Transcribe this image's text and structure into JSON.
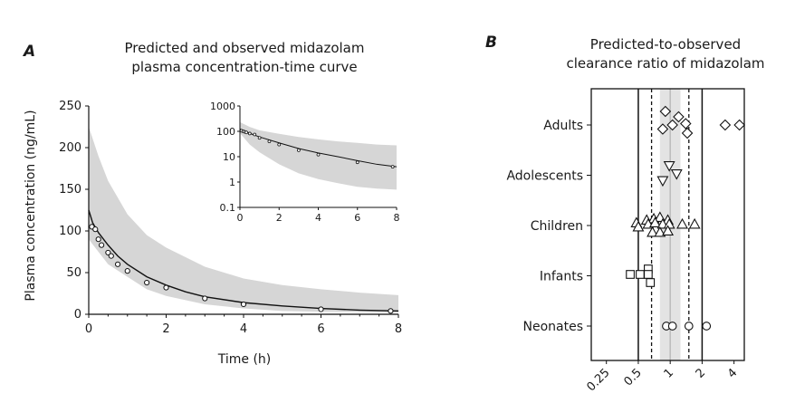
{
  "panel_a": {
    "letter": "A",
    "title_line1": "Predicted and observed midazolam",
    "title_line2": "plasma concentration-time curve"
  },
  "panel_b": {
    "letter": "B",
    "title_line1": "Predicted-to-observed",
    "title_line2": "clearance ratio of midazolam"
  },
  "colors": {
    "band": "#d6d6d6",
    "line": "#111111",
    "gridline": "#bbbbbb"
  },
  "chart_data": [
    {
      "type": "line",
      "name": "main",
      "xlabel": "Time (h)",
      "ylabel": "Plasma concentration (ng/mL)",
      "xlim": [
        0,
        8
      ],
      "ylim": [
        0,
        250
      ],
      "xticks": [
        "0",
        "2",
        "4",
        "6",
        "8"
      ],
      "yticks": [
        "0",
        "50",
        "100",
        "150",
        "200",
        "250"
      ],
      "band_upper": [
        [
          0,
          225
        ],
        [
          0.25,
          190
        ],
        [
          0.5,
          160
        ],
        [
          1,
          120
        ],
        [
          1.5,
          95
        ],
        [
          2,
          80
        ],
        [
          3,
          57
        ],
        [
          4,
          43
        ],
        [
          5,
          35
        ],
        [
          6,
          30
        ],
        [
          7,
          26
        ],
        [
          8,
          23
        ]
      ],
      "band_lower": [
        [
          0,
          90
        ],
        [
          0.25,
          75
        ],
        [
          0.5,
          60
        ],
        [
          1,
          45
        ],
        [
          1.5,
          30
        ],
        [
          2,
          22
        ],
        [
          3,
          12
        ],
        [
          4,
          7
        ],
        [
          5,
          4
        ],
        [
          6,
          3
        ],
        [
          7,
          2.5
        ],
        [
          8,
          2
        ]
      ],
      "prediction": [
        [
          0,
          125
        ],
        [
          0.1,
          110
        ],
        [
          0.25,
          98
        ],
        [
          0.5,
          83
        ],
        [
          0.75,
          70
        ],
        [
          1,
          60
        ],
        [
          1.5,
          45
        ],
        [
          2,
          35
        ],
        [
          2.5,
          27
        ],
        [
          3,
          21
        ],
        [
          4,
          14
        ],
        [
          5,
          10
        ],
        [
          6,
          7
        ],
        [
          7,
          5
        ],
        [
          8,
          4
        ]
      ],
      "observed": [
        [
          0.08,
          105
        ],
        [
          0.17,
          102
        ],
        [
          0.25,
          90
        ],
        [
          0.33,
          83
        ],
        [
          0.5,
          74
        ],
        [
          0.58,
          70
        ],
        [
          0.75,
          60
        ],
        [
          1,
          52
        ],
        [
          1.5,
          38
        ],
        [
          2,
          32
        ],
        [
          3,
          19
        ],
        [
          4,
          12
        ],
        [
          6,
          6
        ],
        [
          7.8,
          4
        ]
      ]
    },
    {
      "type": "line",
      "name": "inset",
      "scale_y": "log",
      "xlim": [
        0,
        8
      ],
      "ylim": [
        0.1,
        1000
      ],
      "xticks": [
        "0",
        "2",
        "4",
        "6",
        "8"
      ],
      "yticks": [
        "0.1",
        "1",
        "10",
        "100",
        "1000"
      ],
      "band_upper": [
        [
          0,
          230
        ],
        [
          0.5,
          150
        ],
        [
          1,
          110
        ],
        [
          2,
          80
        ],
        [
          3,
          60
        ],
        [
          4,
          48
        ],
        [
          5,
          40
        ],
        [
          6,
          35
        ],
        [
          7,
          30
        ],
        [
          8,
          28
        ]
      ],
      "band_lower": [
        [
          0,
          85
        ],
        [
          0.5,
          30
        ],
        [
          1,
          15
        ],
        [
          2,
          5
        ],
        [
          3,
          2.2
        ],
        [
          4,
          1.3
        ],
        [
          5,
          0.9
        ],
        [
          6,
          0.65
        ],
        [
          7,
          0.55
        ],
        [
          8,
          0.5
        ]
      ],
      "prediction": [
        [
          0,
          125
        ],
        [
          0.5,
          83
        ],
        [
          1,
          60
        ],
        [
          2,
          35
        ],
        [
          3,
          21
        ],
        [
          4,
          14
        ],
        [
          5,
          10
        ],
        [
          6,
          7
        ],
        [
          7,
          5
        ],
        [
          8,
          4
        ]
      ],
      "observed": [
        [
          0.08,
          105
        ],
        [
          0.17,
          100
        ],
        [
          0.25,
          95
        ],
        [
          0.33,
          90
        ],
        [
          0.5,
          82
        ],
        [
          0.75,
          75
        ],
        [
          1,
          55
        ],
        [
          1.5,
          40
        ],
        [
          2,
          30
        ],
        [
          3,
          18
        ],
        [
          4,
          12
        ],
        [
          6,
          6
        ],
        [
          7.8,
          4
        ]
      ]
    },
    {
      "type": "scatter",
      "name": "clearance_ratio",
      "scale_x": "log2",
      "xlim": [
        0.18,
        5
      ],
      "xticks": [
        "0.25",
        "0.5",
        "1",
        "2",
        "4"
      ],
      "categories": [
        "Adults",
        "Adolescents",
        "Children",
        "Infants",
        "Neonates"
      ],
      "markers": [
        "diamond",
        "triangle-down",
        "triangle-up",
        "square",
        "circle"
      ],
      "solid_lines": [
        0.5,
        2
      ],
      "dashed_lines": [
        0.667,
        1.5
      ],
      "shaded_band": [
        0.8,
        1.25
      ],
      "center_line": 1,
      "series": [
        {
          "category": "Adults",
          "points": [
            [
              0.9,
              0.5
            ],
            [
              1.2,
              0.3
            ],
            [
              1.05,
              0
            ],
            [
              1.4,
              0.05
            ],
            [
              0.85,
              -0.15
            ],
            [
              1.45,
              -0.3
            ],
            [
              3.3,
              0
            ],
            [
              4.5,
              0
            ]
          ]
        },
        {
          "category": "Adolescents",
          "points": [
            [
              0.98,
              0.35
            ],
            [
              1.15,
              0.05
            ],
            [
              0.85,
              -0.2
            ]
          ]
        },
        {
          "category": "Children",
          "points": [
            [
              0.48,
              0.1
            ],
            [
              0.6,
              0.2
            ],
            [
              0.7,
              0.25
            ],
            [
              0.8,
              0.3
            ],
            [
              0.95,
              0.2
            ],
            [
              0.5,
              -0.05
            ],
            [
              0.62,
              0.05
            ],
            [
              0.72,
              0.1
            ],
            [
              0.85,
              0.05
            ],
            [
              0.98,
              0.05
            ],
            [
              1.3,
              0.05
            ],
            [
              1.7,
              0.05
            ],
            [
              0.68,
              -0.25
            ],
            [
              0.8,
              -0.25
            ],
            [
              0.95,
              -0.2
            ]
          ]
        },
        {
          "category": "Infants",
          "points": [
            [
              0.62,
              0.25
            ],
            [
              0.42,
              0.05
            ],
            [
              0.52,
              0.05
            ],
            [
              0.62,
              0.05
            ],
            [
              0.65,
              -0.25
            ]
          ]
        },
        {
          "category": "Neonates",
          "points": [
            [
              0.92,
              0
            ],
            [
              1.05,
              0
            ],
            [
              1.5,
              0
            ],
            [
              2.2,
              0
            ]
          ]
        }
      ]
    }
  ]
}
